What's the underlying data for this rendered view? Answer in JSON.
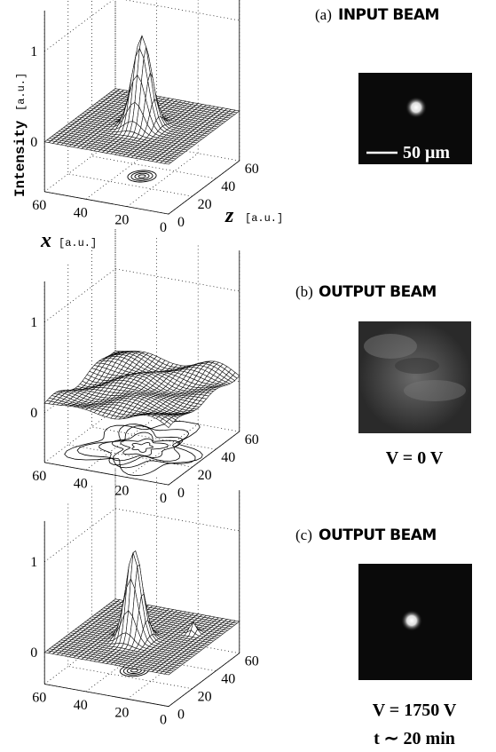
{
  "panels": [
    {
      "label": "(a)",
      "title": "INPUT BEAM",
      "axes": {
        "intensity_label": "Intensity",
        "intensity_unit": "[a.u.]",
        "x_label": "x",
        "x_unit": "[a.u.]",
        "z_label": "z",
        "z_unit": "[a.u.]",
        "iticks": [
          0,
          1
        ],
        "xticks": [
          60,
          40,
          20,
          0
        ],
        "zticks": [
          0,
          20,
          40,
          60
        ]
      },
      "scale_bar": "50 μm"
    },
    {
      "label": "(b)",
      "title": "OUTPUT BEAM",
      "axes": {
        "iticks": [
          0,
          1
        ],
        "xticks": [
          60,
          40,
          20,
          0
        ],
        "zticks": [
          0,
          20,
          40,
          60
        ]
      },
      "captions": [
        "V = 0 V"
      ]
    },
    {
      "label": "(c)",
      "title": "OUTPUT BEAM",
      "axes": {
        "iticks": [
          0,
          1
        ],
        "xticks": [
          60,
          40,
          20,
          0
        ],
        "zticks": [
          0,
          20,
          40,
          60
        ]
      },
      "captions": [
        "V = 1750 V",
        "t ∼ 20 min"
      ]
    }
  ]
}
